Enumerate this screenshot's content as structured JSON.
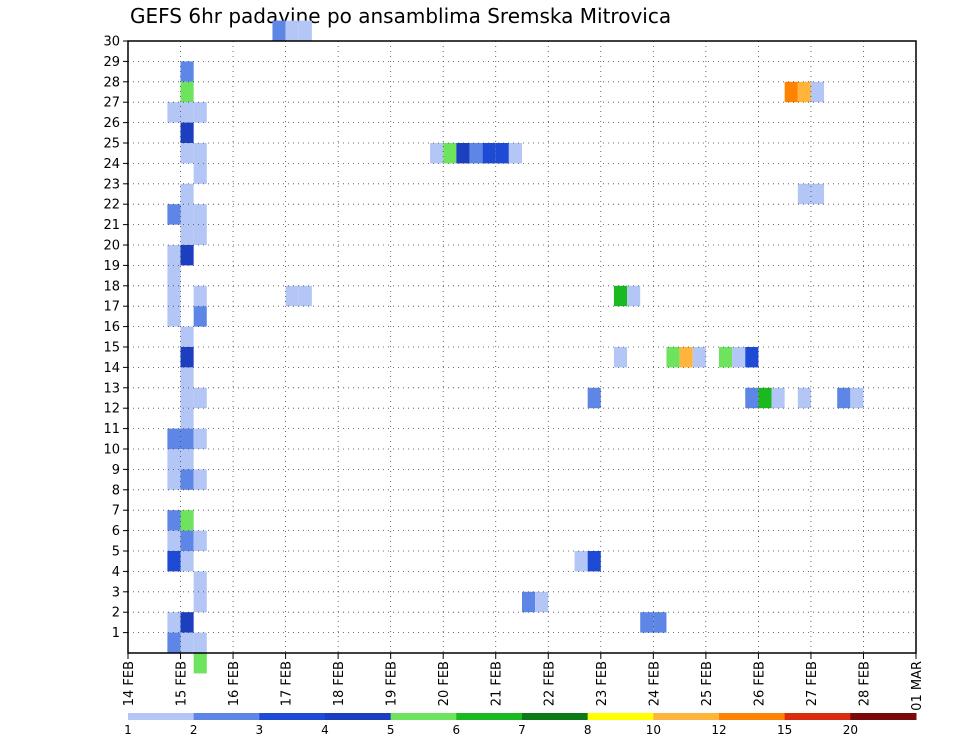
{
  "chart_data": {
    "type": "heatmap",
    "title": "GEFS 6hr padavine po ansamblima Sremska Mitrovica",
    "x_tick_labels": [
      "14 FEB",
      "15 FEB",
      "16 FEB",
      "17 FEB",
      "18 FEB",
      "19 FEB",
      "20 FEB",
      "21 FEB",
      "22 FEB",
      "23 FEB",
      "24 FEB",
      "25 FEB",
      "26 FEB",
      "27 FEB",
      "28 FEB",
      "01 MAR"
    ],
    "y_tick_labels": [
      "1",
      "2",
      "3",
      "4",
      "5",
      "6",
      "7",
      "8",
      "9",
      "10",
      "11",
      "12",
      "13",
      "14",
      "15",
      "16",
      "17",
      "18",
      "19",
      "20",
      "21",
      "22",
      "23",
      "24",
      "25",
      "26",
      "27",
      "28",
      "29",
      "30"
    ],
    "x_step_days": 0.25,
    "ylim": [
      0,
      30
    ],
    "grid": true,
    "colorbar": {
      "labels": [
        "1",
        "2",
        "3",
        "4",
        "5",
        "6",
        "7",
        "8",
        "10",
        "12",
        "15",
        "20"
      ],
      "colors": [
        "#b3c6f5",
        "#5d86e6",
        "#1e4bd6",
        "#1c3fc0",
        "#6ee35e",
        "#19b91f",
        "#0c7a18",
        "#ffff00",
        "#ffb43c",
        "#ff8200",
        "#dc2a0f",
        "#7a0a0a"
      ]
    },
    "cells": [
      {
        "member": 30,
        "t": "16 FEB 18Z",
        "v": 2
      },
      {
        "member": 30,
        "t": "17 FEB 00Z",
        "v": 1
      },
      {
        "member": 30,
        "t": "17 FEB 06Z",
        "v": 1
      },
      {
        "member": 28,
        "t": "15 FEB 00Z",
        "v": 2
      },
      {
        "member": 27,
        "t": "15 FEB 00Z",
        "v": 5
      },
      {
        "member": 26,
        "t": "14 FEB 18Z",
        "v": 1
      },
      {
        "member": 26,
        "t": "15 FEB 00Z",
        "v": 1
      },
      {
        "member": 26,
        "t": "15 FEB 06Z",
        "v": 1
      },
      {
        "member": 25,
        "t": "15 FEB 00Z",
        "v": 4
      },
      {
        "member": 24,
        "t": "15 FEB 00Z",
        "v": 1
      },
      {
        "member": 24,
        "t": "15 FEB 06Z",
        "v": 1
      },
      {
        "member": 23,
        "t": "15 FEB 06Z",
        "v": 1
      },
      {
        "member": 22,
        "t": "15 FEB 00Z",
        "v": 1
      },
      {
        "member": 21,
        "t": "14 FEB 18Z",
        "v": 2
      },
      {
        "member": 21,
        "t": "15 FEB 00Z",
        "v": 1
      },
      {
        "member": 21,
        "t": "15 FEB 06Z",
        "v": 1
      },
      {
        "member": 20,
        "t": "15 FEB 00Z",
        "v": 1
      },
      {
        "member": 20,
        "t": "15 FEB 06Z",
        "v": 1
      },
      {
        "member": 19,
        "t": "14 FEB 18Z",
        "v": 1
      },
      {
        "member": 19,
        "t": "15 FEB 00Z",
        "v": 4
      },
      {
        "member": 18,
        "t": "14 FEB 18Z",
        "v": 1
      },
      {
        "member": 17,
        "t": "14 FEB 18Z",
        "v": 1
      },
      {
        "member": 17,
        "t": "15 FEB 06Z",
        "v": 1
      },
      {
        "member": 16,
        "t": "14 FEB 18Z",
        "v": 1
      },
      {
        "member": 16,
        "t": "15 FEB 06Z",
        "v": 2
      },
      {
        "member": 15,
        "t": "15 FEB 00Z",
        "v": 1
      },
      {
        "member": 14,
        "t": "15 FEB 00Z",
        "v": 4
      },
      {
        "member": 13,
        "t": "15 FEB 00Z",
        "v": 1
      },
      {
        "member": 12,
        "t": "15 FEB 00Z",
        "v": 1
      },
      {
        "member": 12,
        "t": "15 FEB 06Z",
        "v": 1
      },
      {
        "member": 11,
        "t": "15 FEB 00Z",
        "v": 1
      },
      {
        "member": 10,
        "t": "14 FEB 18Z",
        "v": 2
      },
      {
        "member": 10,
        "t": "15 FEB 00Z",
        "v": 2
      },
      {
        "member": 10,
        "t": "15 FEB 06Z",
        "v": 1
      },
      {
        "member": 9,
        "t": "14 FEB 18Z",
        "v": 1
      },
      {
        "member": 9,
        "t": "15 FEB 00Z",
        "v": 1
      },
      {
        "member": 8,
        "t": "14 FEB 18Z",
        "v": 1
      },
      {
        "member": 8,
        "t": "15 FEB 00Z",
        "v": 2
      },
      {
        "member": 8,
        "t": "15 FEB 06Z",
        "v": 1
      },
      {
        "member": 6,
        "t": "14 FEB 18Z",
        "v": 2
      },
      {
        "member": 6,
        "t": "15 FEB 00Z",
        "v": 5
      },
      {
        "member": 5,
        "t": "14 FEB 18Z",
        "v": 1
      },
      {
        "member": 5,
        "t": "15 FEB 00Z",
        "v": 2
      },
      {
        "member": 5,
        "t": "15 FEB 06Z",
        "v": 1
      },
      {
        "member": 4,
        "t": "14 FEB 18Z",
        "v": 3
      },
      {
        "member": 4,
        "t": "15 FEB 00Z",
        "v": 1
      },
      {
        "member": 3,
        "t": "15 FEB 06Z",
        "v": 1
      },
      {
        "member": 2,
        "t": "15 FEB 06Z",
        "v": 1
      },
      {
        "member": 1,
        "t": "14 FEB 18Z",
        "v": 1
      },
      {
        "member": 1,
        "t": "15 FEB 00Z",
        "v": 4
      },
      {
        "member": 0,
        "t": "14 FEB 18Z",
        "v": 2
      },
      {
        "member": 0,
        "t": "15 FEB 00Z",
        "v": 1
      },
      {
        "member": 0,
        "t": "15 FEB 06Z",
        "v": 1
      },
      {
        "member": -1,
        "t": "15 FEB 06Z",
        "v": 5
      },
      {
        "member": 17,
        "t": "17 FEB 00Z",
        "v": 1
      },
      {
        "member": 17,
        "t": "17 FEB 06Z",
        "v": 1
      },
      {
        "member": 24,
        "t": "19 FEB 18Z",
        "v": 1
      },
      {
        "member": 24,
        "t": "20 FEB 00Z",
        "v": 5
      },
      {
        "member": 24,
        "t": "20 FEB 06Z",
        "v": 4
      },
      {
        "member": 24,
        "t": "20 FEB 12Z",
        "v": 2
      },
      {
        "member": 24,
        "t": "20 FEB 18Z",
        "v": 3
      },
      {
        "member": 24,
        "t": "21 FEB 00Z",
        "v": 3
      },
      {
        "member": 24,
        "t": "21 FEB 06Z",
        "v": 1
      },
      {
        "member": 2,
        "t": "21 FEB 12Z",
        "v": 2
      },
      {
        "member": 2,
        "t": "21 FEB 18Z",
        "v": 1
      },
      {
        "member": 4,
        "t": "22 FEB 12Z",
        "v": 1
      },
      {
        "member": 4,
        "t": "22 FEB 18Z",
        "v": 3
      },
      {
        "member": 12,
        "t": "22 FEB 18Z",
        "v": 2
      },
      {
        "member": 17,
        "t": "23 FEB 06Z",
        "v": 6
      },
      {
        "member": 17,
        "t": "23 FEB 12Z",
        "v": 1
      },
      {
        "member": 14,
        "t": "23 FEB 06Z",
        "v": 1
      },
      {
        "member": 1,
        "t": "23 FEB 18Z",
        "v": 2
      },
      {
        "member": 1,
        "t": "24 FEB 00Z",
        "v": 2
      },
      {
        "member": 14,
        "t": "24 FEB 06Z",
        "v": 5
      },
      {
        "member": 14,
        "t": "24 FEB 12Z",
        "v": 10
      },
      {
        "member": 14,
        "t": "24 FEB 18Z",
        "v": 1
      },
      {
        "member": 14,
        "t": "25 FEB 06Z",
        "v": 5
      },
      {
        "member": 14,
        "t": "25 FEB 12Z",
        "v": 1
      },
      {
        "member": 14,
        "t": "25 FEB 18Z",
        "v": 3
      },
      {
        "member": 12,
        "t": "25 FEB 18Z",
        "v": 2
      },
      {
        "member": 12,
        "t": "26 FEB 00Z",
        "v": 6
      },
      {
        "member": 12,
        "t": "26 FEB 06Z",
        "v": 1
      },
      {
        "member": 12,
        "t": "26 FEB 18Z",
        "v": 1
      },
      {
        "member": 12,
        "t": "27 FEB 12Z",
        "v": 2
      },
      {
        "member": 12,
        "t": "27 FEB 18Z",
        "v": 1
      },
      {
        "member": 22,
        "t": "26 FEB 18Z",
        "v": 1
      },
      {
        "member": 22,
        "t": "27 FEB 00Z",
        "v": 1
      },
      {
        "member": 27,
        "t": "26 FEB 12Z",
        "v": 12
      },
      {
        "member": 27,
        "t": "26 FEB 18Z",
        "v": 10
      },
      {
        "member": 27,
        "t": "27 FEB 00Z",
        "v": 1
      }
    ]
  }
}
